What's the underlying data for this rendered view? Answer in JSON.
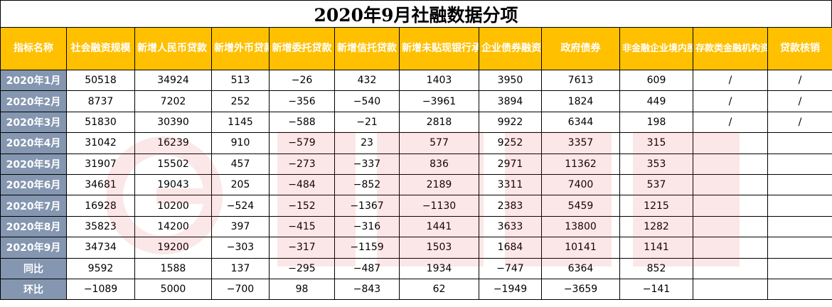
{
  "title": "2020年9月社融数据分项",
  "headers": [
    "指标名称",
    "社会融资规模",
    "新增人民币贷款（对实体）",
    "新增外币贷款",
    "新增委托贷款",
    "新增信托贷款",
    "新增未贴现银行承兑汇票",
    "企业债券融资",
    "政府债券",
    "非金融企业境内股票融资",
    "存款类金融机构资产支持证券",
    "贷款核销"
  ],
  "rows": [
    {
      "label": "2020年1月",
      "cells": [
        "50518",
        "34924",
        "513",
        "−26",
        "432",
        "1403",
        "3950",
        "7613",
        "609",
        "/",
        "/"
      ]
    },
    {
      "label": "2020年2月",
      "cells": [
        "8737",
        "7202",
        "252",
        "−356",
        "−540",
        "−3961",
        "3894",
        "1824",
        "449",
        "/",
        "/"
      ]
    },
    {
      "label": "2020年3月",
      "cells": [
        "51830",
        "30390",
        "1145",
        "−588",
        "−21",
        "2818",
        "9922",
        "6344",
        "198",
        "/",
        "/"
      ]
    },
    {
      "label": "2020年4月",
      "cells": [
        "31042",
        "16239",
        "910",
        "−579",
        "23",
        "577",
        "9252",
        "3357",
        "315",
        "",
        ""
      ]
    },
    {
      "label": "2020年5月",
      "cells": [
        "31907",
        "15502",
        "457",
        "−273",
        "−337",
        "836",
        "2971",
        "11362",
        "353",
        "",
        ""
      ]
    },
    {
      "label": "2020年6月",
      "cells": [
        "34681",
        "19043",
        "205",
        "−484",
        "−852",
        "2189",
        "3311",
        "7400",
        "537",
        "",
        ""
      ]
    },
    {
      "label": "2020年7月",
      "cells": [
        "16928",
        "10200",
        "−524",
        "−152",
        "−1367",
        "−1130",
        "2383",
        "5459",
        "1215",
        "",
        ""
      ]
    },
    {
      "label": "2020年8月",
      "cells": [
        "35823",
        "14200",
        "397",
        "−415",
        "−316",
        "1441",
        "3633",
        "13800",
        "1282",
        "",
        ""
      ]
    },
    {
      "label": "2020年9月",
      "cells": [
        "34734",
        "19200",
        "−303",
        "−317",
        "−1159",
        "1503",
        "1684",
        "10141",
        "1141",
        "",
        ""
      ]
    },
    {
      "label": "同比",
      "cells": [
        "9592",
        "1588",
        "137",
        "−295",
        "−487",
        "1934",
        "−747",
        "6364",
        "852",
        "",
        ""
      ]
    },
    {
      "label": "环比",
      "cells": [
        "−1089",
        "5000",
        "−700",
        "98",
        "−843",
        "62",
        "−1949",
        "−3659",
        "−141",
        "",
        ""
      ]
    }
  ],
  "colors": {
    "header_bg": "#ffc000",
    "header_text": "#ffffff",
    "rowlabel_bg": "#8496b0",
    "rowlabel_text": "#ffffff",
    "watermark": "#e02020"
  },
  "watermark_icon": "cailianshe-logo-icon"
}
